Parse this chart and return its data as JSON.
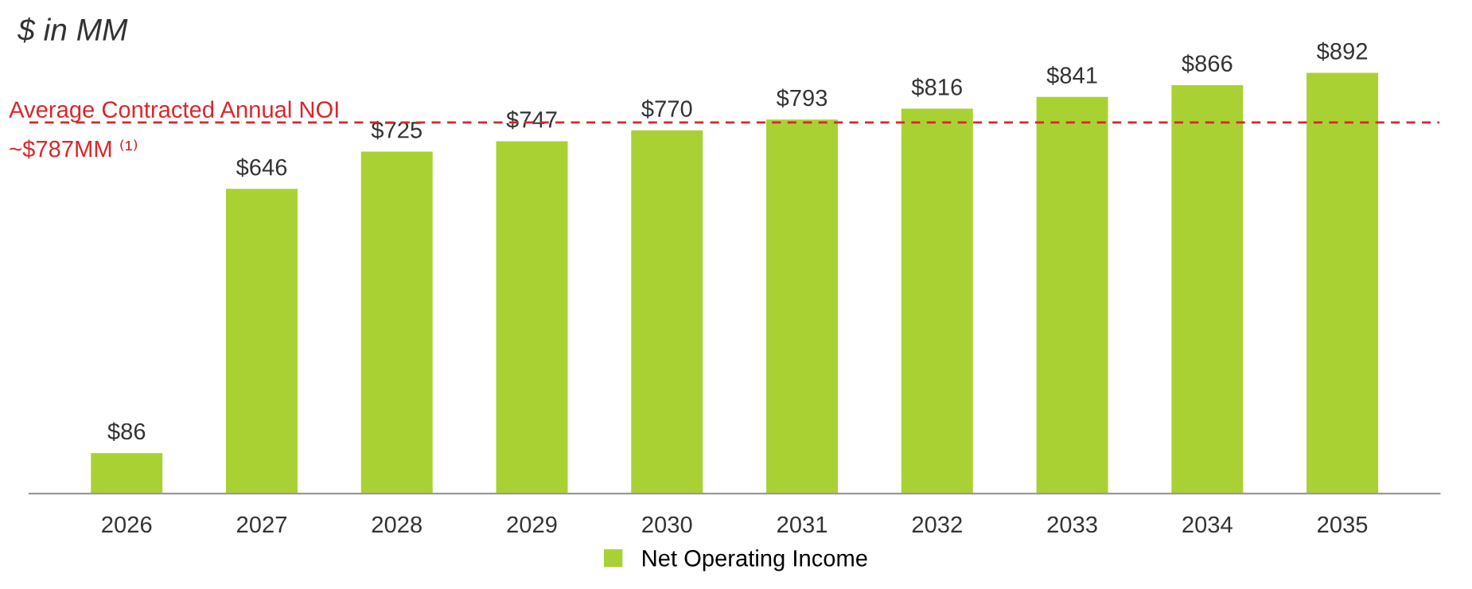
{
  "chart_data": {
    "type": "bar",
    "title": "$ in MM",
    "categories": [
      "2026",
      "2027",
      "2028",
      "2029",
      "2030",
      "2031",
      "2032",
      "2033",
      "2034",
      "2035"
    ],
    "series": [
      {
        "name": "Net Operating Income",
        "color": "#a9d134",
        "values": [
          86,
          646,
          725,
          747,
          770,
          793,
          816,
          841,
          866,
          892
        ],
        "value_labels": [
          "$86",
          "$646",
          "$725",
          "$747",
          "$770",
          "$793",
          "$816",
          "$841",
          "$866",
          "$892"
        ]
      }
    ],
    "ref_lines": [
      {
        "axis": "y",
        "value": 787,
        "label": "Average Contracted Annual NOI\n~$787MM ⁽¹⁾",
        "color": "#d9262b",
        "line_style": "dashed"
      }
    ],
    "grid": false,
    "legend": "bottom",
    "tick_labels": "x"
  }
}
